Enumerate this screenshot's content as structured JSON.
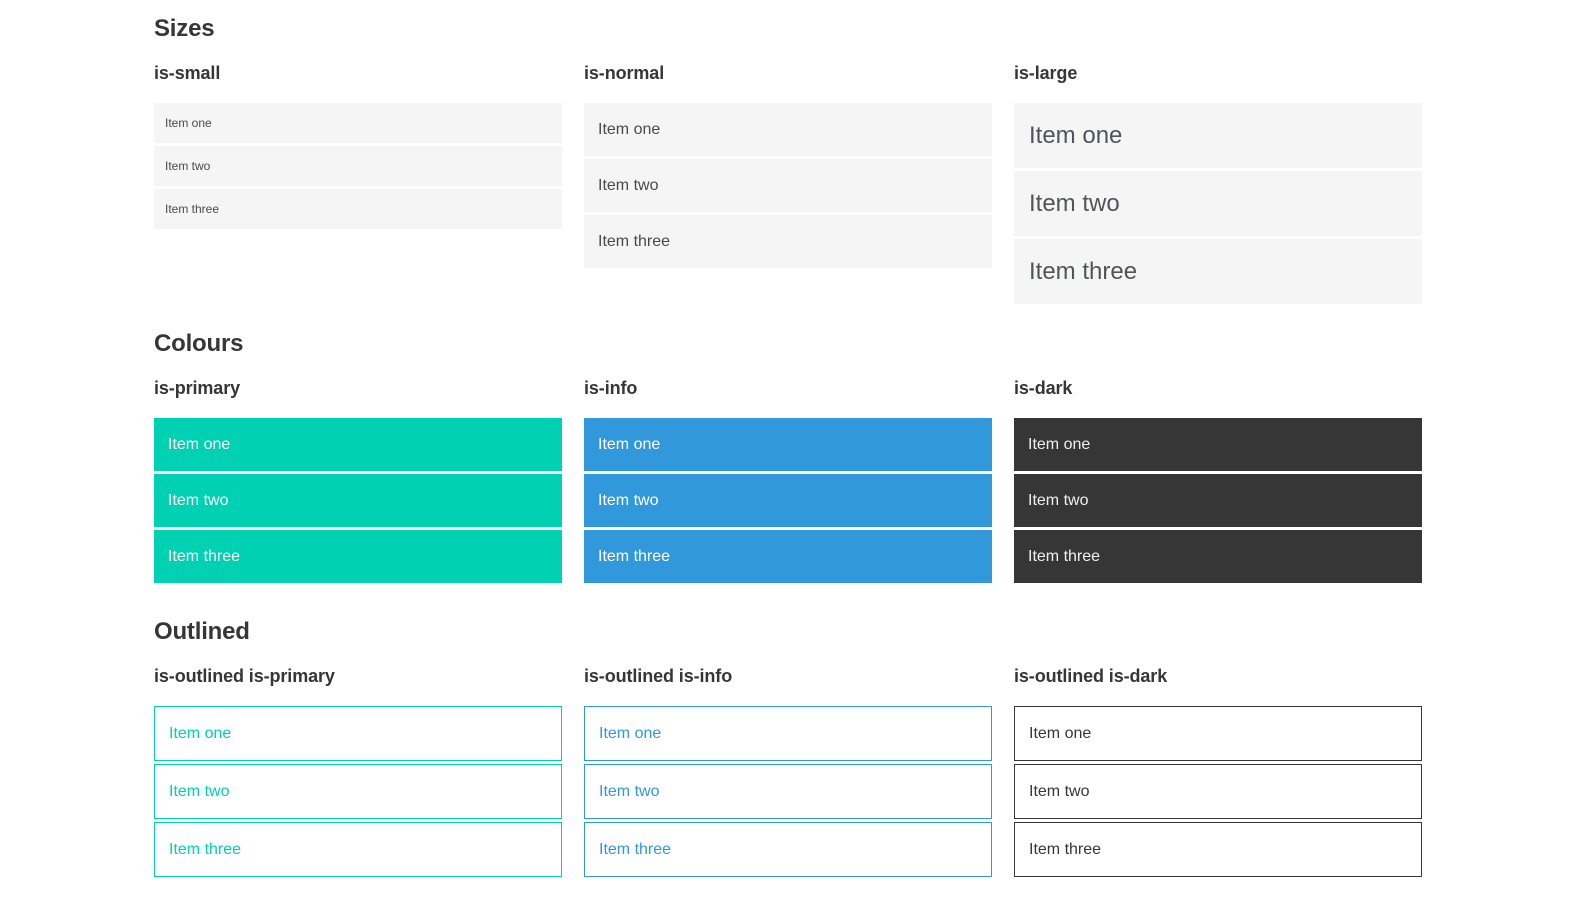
{
  "sections": [
    {
      "title": "Sizes",
      "demos": [
        {
          "label": "is-small",
          "items": [
            "Item one",
            "Item two",
            "Item three"
          ]
        },
        {
          "label": "is-normal",
          "items": [
            "Item one",
            "Item two",
            "Item three"
          ]
        },
        {
          "label": "is-large",
          "items": [
            "Item one",
            "Item two",
            "Item three"
          ]
        }
      ]
    },
    {
      "title": "Colours",
      "demos": [
        {
          "label": "is-primary",
          "items": [
            "Item one",
            "Item two",
            "Item three"
          ]
        },
        {
          "label": "is-info",
          "items": [
            "Item one",
            "Item two",
            "Item three"
          ]
        },
        {
          "label": "is-dark",
          "items": [
            "Item one",
            "Item two",
            "Item three"
          ]
        }
      ]
    },
    {
      "title": "Outlined",
      "demos": [
        {
          "label": "is-outlined is-primary",
          "items": [
            "Item one",
            "Item two",
            "Item three"
          ]
        },
        {
          "label": "is-outlined is-info",
          "items": [
            "Item one",
            "Item two",
            "Item three"
          ]
        },
        {
          "label": "is-outlined is-dark",
          "items": [
            "Item one",
            "Item two",
            "Item three"
          ]
        }
      ]
    }
  ],
  "colors": {
    "primary": "#00d1b2",
    "info": "#3298dc",
    "dark": "#363636",
    "light": "#f5f5f5",
    "text": "#4a4a4a",
    "heading": "#363636",
    "white": "#ffffff"
  }
}
